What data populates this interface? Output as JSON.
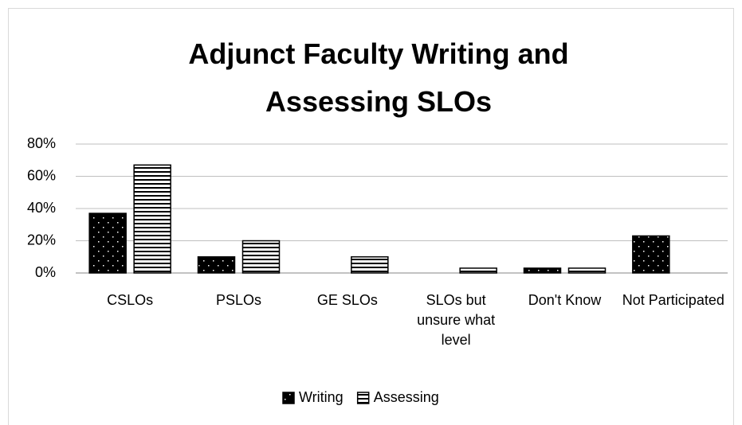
{
  "chart_data": {
    "type": "bar",
    "title": "Adjunct Faculty Writing and Assessing SLOs",
    "categories": [
      "CSLOs",
      "PSLOs",
      "GE SLOs",
      "SLOs but unsure what level",
      "Don't Know",
      "Not Participated"
    ],
    "series": [
      {
        "name": "Writing",
        "color": "#000000",
        "values": [
          37,
          10,
          0,
          0,
          3,
          23
        ]
      },
      {
        "name": "Assessing",
        "color": "#ffffff",
        "values": [
          67,
          20,
          10,
          3,
          3,
          0
        ]
      }
    ],
    "ylim": [
      0,
      80
    ],
    "yticks": [
      {
        "value": 0,
        "label": "0%"
      },
      {
        "value": 20,
        "label": "20%"
      },
      {
        "value": 40,
        "label": "40%"
      },
      {
        "value": 60,
        "label": "60%"
      },
      {
        "value": 80,
        "label": "80%"
      }
    ],
    "grid": true,
    "legend": "bottom"
  }
}
